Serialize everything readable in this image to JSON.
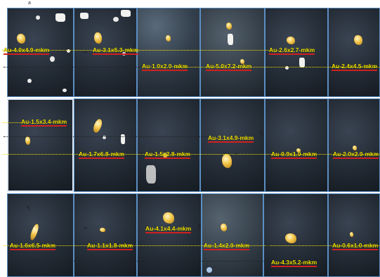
{
  "corner_mark": "a",
  "labels": {
    "r1a": "Au-4.0x4.9-mkm",
    "r1b": "Au-3.1x5.3-mkm",
    "r1c": "Au-2.6x2.7-mkm",
    "r1d": "Au-1.0x2.0-mkm",
    "r1e": "Au-5.0x7.2-mkm",
    "r1f": "Au-2.4x4.5-mkm",
    "r2a": "Au-1.5x3.4-mkm",
    "r2b": "Au-3.1x4.9-mkm",
    "r2c": "Au-1.7x6.8-mkm",
    "r2d": "Au-1.5x2.8-mkm",
    "r2e": "Au-0.9x1.0-mkm",
    "r2f": "Au-2.0x2.0-mkm",
    "r3a": "Au-4.1x4.4-mkm",
    "r3b": "Au-1.6x6.5-mkm",
    "r3c": "Au-1.1x1.8-mkm",
    "r3d": "Au-1.4x2.0-mkm",
    "r3e": "Au-0.6x1.0-mkm",
    "r3f": "Au-4.3x5.2-mkm"
  },
  "pilcrow": "¶",
  "colors": {
    "label": "#f3e200",
    "panel_border": "#5b8fc4",
    "gold": "#f3c64a",
    "underline": "#d02020"
  }
}
